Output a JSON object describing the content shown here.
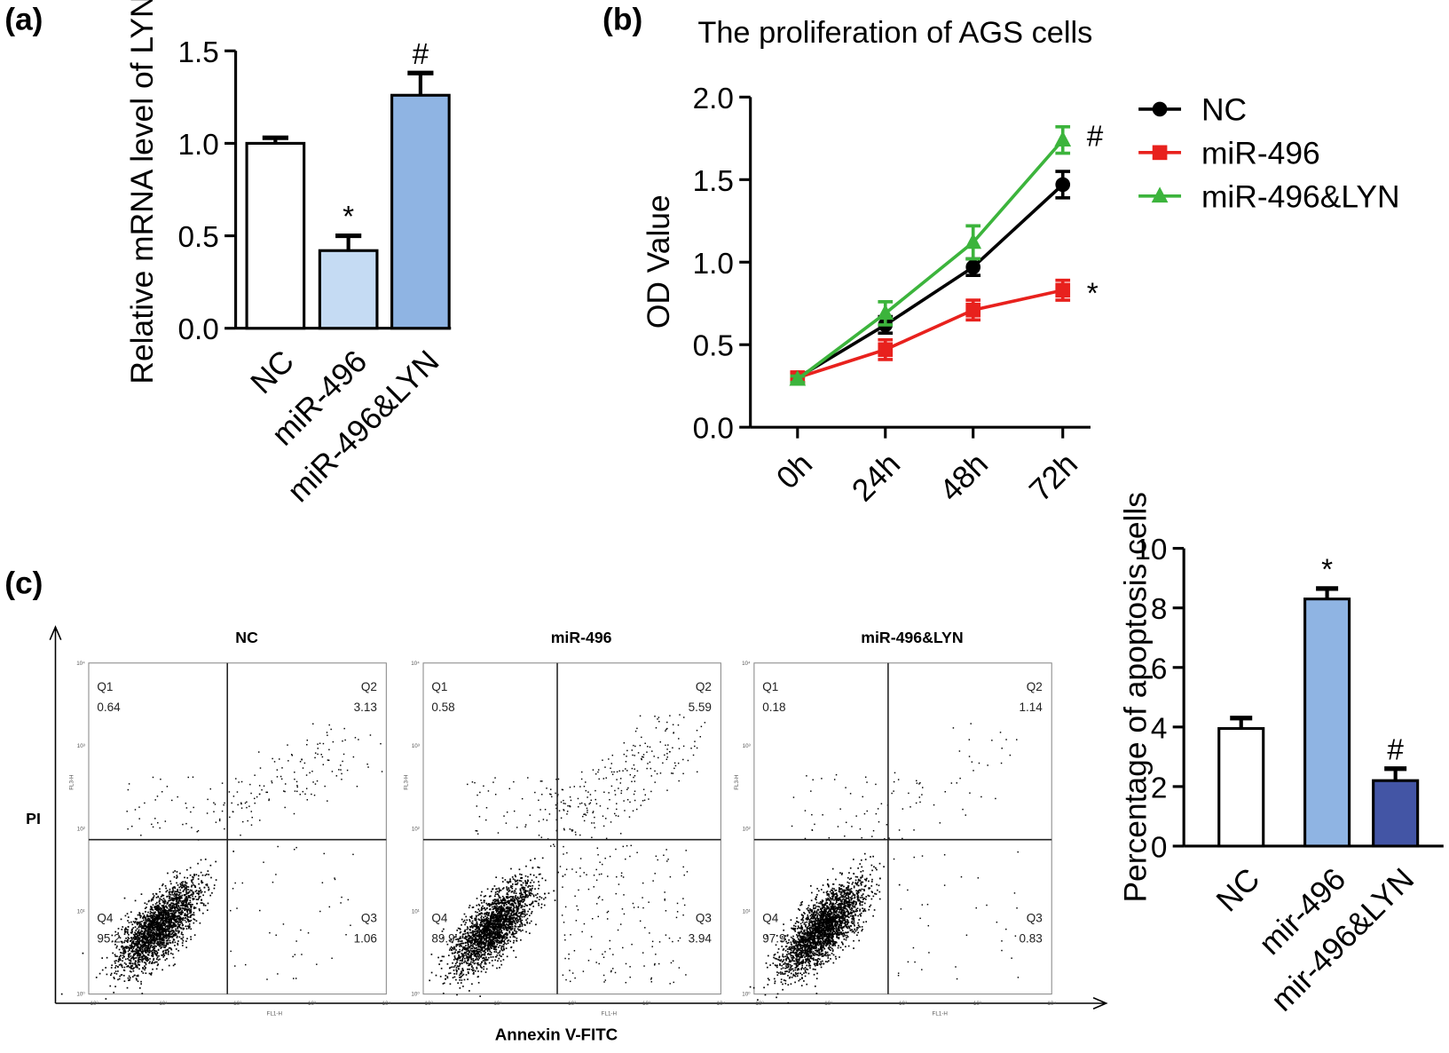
{
  "panel_labels": {
    "a": "(a)",
    "b": "(b)",
    "c": "(c)"
  },
  "chart_data": [
    {
      "id": "a",
      "type": "bar",
      "ylabel": "Relative mRNA level of LYN",
      "categories": [
        "NC",
        "miR-496",
        "miR-496&LYN"
      ],
      "values": [
        1.0,
        0.42,
        1.26
      ],
      "errors": [
        0.03,
        0.08,
        0.12
      ],
      "annotations": [
        "",
        "*",
        "#"
      ],
      "colors": [
        "#ffffff",
        "#c5dbf3",
        "#8fb4e3"
      ],
      "ylim": [
        0,
        1.5
      ],
      "yticks": [
        "0.0",
        "0.5",
        "1.0",
        "1.5"
      ],
      "grid": false
    },
    {
      "id": "b",
      "type": "line",
      "title": "The proliferation of AGS cells",
      "ylabel": "OD Value",
      "x": [
        "0h",
        "24h",
        "48h",
        "72h"
      ],
      "ylim": [
        0,
        2.0
      ],
      "yticks": [
        "0.0",
        "0.5",
        "1.0",
        "1.5",
        "2.0"
      ],
      "legend": "right",
      "grid": false,
      "series": [
        {
          "name": "NC",
          "color": "#000000",
          "marker": "circle",
          "values": [
            0.3,
            0.62,
            0.97,
            1.47
          ],
          "errors": [
            0.03,
            0.05,
            0.05,
            0.08
          ],
          "annotation": ""
        },
        {
          "name": "miR-496",
          "color": "#e8211d",
          "marker": "square",
          "values": [
            0.3,
            0.47,
            0.71,
            0.83
          ],
          "errors": [
            0.03,
            0.06,
            0.06,
            0.06
          ],
          "annotation": "*"
        },
        {
          "name": "miR-496&LYN",
          "color": "#3cb43c",
          "marker": "triangle",
          "values": [
            0.29,
            0.69,
            1.12,
            1.74
          ],
          "errors": [
            0.02,
            0.07,
            0.1,
            0.08
          ],
          "annotation": "#"
        }
      ]
    },
    {
      "id": "c-flow",
      "type": "scatter",
      "xlabel": "Annexin V-FITC",
      "ylabel": "PI",
      "panel_xlabel": "FL1-H",
      "panel_ylabel": "FL3-H",
      "log_ticks": [
        "10⁰",
        "10¹",
        "10²",
        "10³",
        "10⁴"
      ],
      "panels": [
        {
          "title": "NC",
          "quadrants": {
            "Q1": "0.64",
            "Q2": "3.13",
            "Q3": "1.06",
            "Q4": "95.2"
          }
        },
        {
          "title": "miR-496",
          "quadrants": {
            "Q1": "0.58",
            "Q2": "5.59",
            "Q3": "3.94",
            "Q4": "89.9"
          }
        },
        {
          "title": "miR-496&LYN",
          "quadrants": {
            "Q1": "0.18",
            "Q2": "1.14",
            "Q3": "0.83",
            "Q4": "97.9"
          }
        }
      ]
    },
    {
      "id": "c-bar",
      "type": "bar",
      "ylabel": "Percentage of apoptosis cells",
      "categories": [
        "NC",
        "mir-496",
        "mir-496&LYN"
      ],
      "values": [
        3.95,
        8.3,
        2.2
      ],
      "errors": [
        0.35,
        0.35,
        0.4
      ],
      "annotations": [
        "",
        "*",
        "#"
      ],
      "colors": [
        "#ffffff",
        "#8fb4e3",
        "#4355a5"
      ],
      "ylim": [
        0,
        10
      ],
      "yticks": [
        "0",
        "2",
        "4",
        "6",
        "8",
        "10"
      ],
      "grid": false
    }
  ]
}
